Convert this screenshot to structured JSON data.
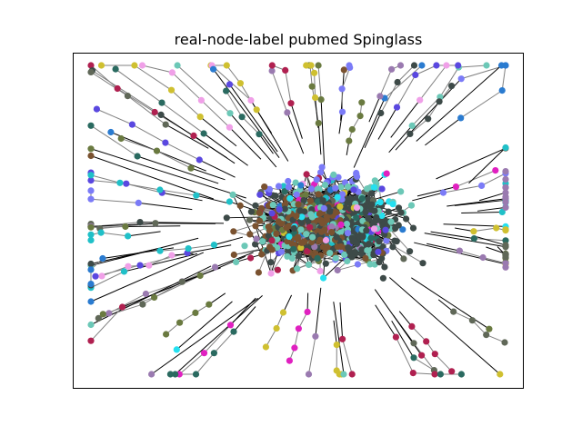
{
  "figure": {
    "title": "real-node-label pubmed Spinglass"
  },
  "graph": {
    "type": "network",
    "layout": "force-directed",
    "edge_color": "#808080",
    "node_colors": [
      "#7b7bf7",
      "#7a5230",
      "#3d4a48",
      "#6cc8b7",
      "#25e0f0",
      "#2a7bd0",
      "#e020c0",
      "#cfc030",
      "#f0a0e8",
      "#b02050",
      "#2a6a60",
      "#6a7a40",
      "#606858",
      "#5a48e0",
      "#9a7ab0",
      "#20c0c8"
    ]
  }
}
